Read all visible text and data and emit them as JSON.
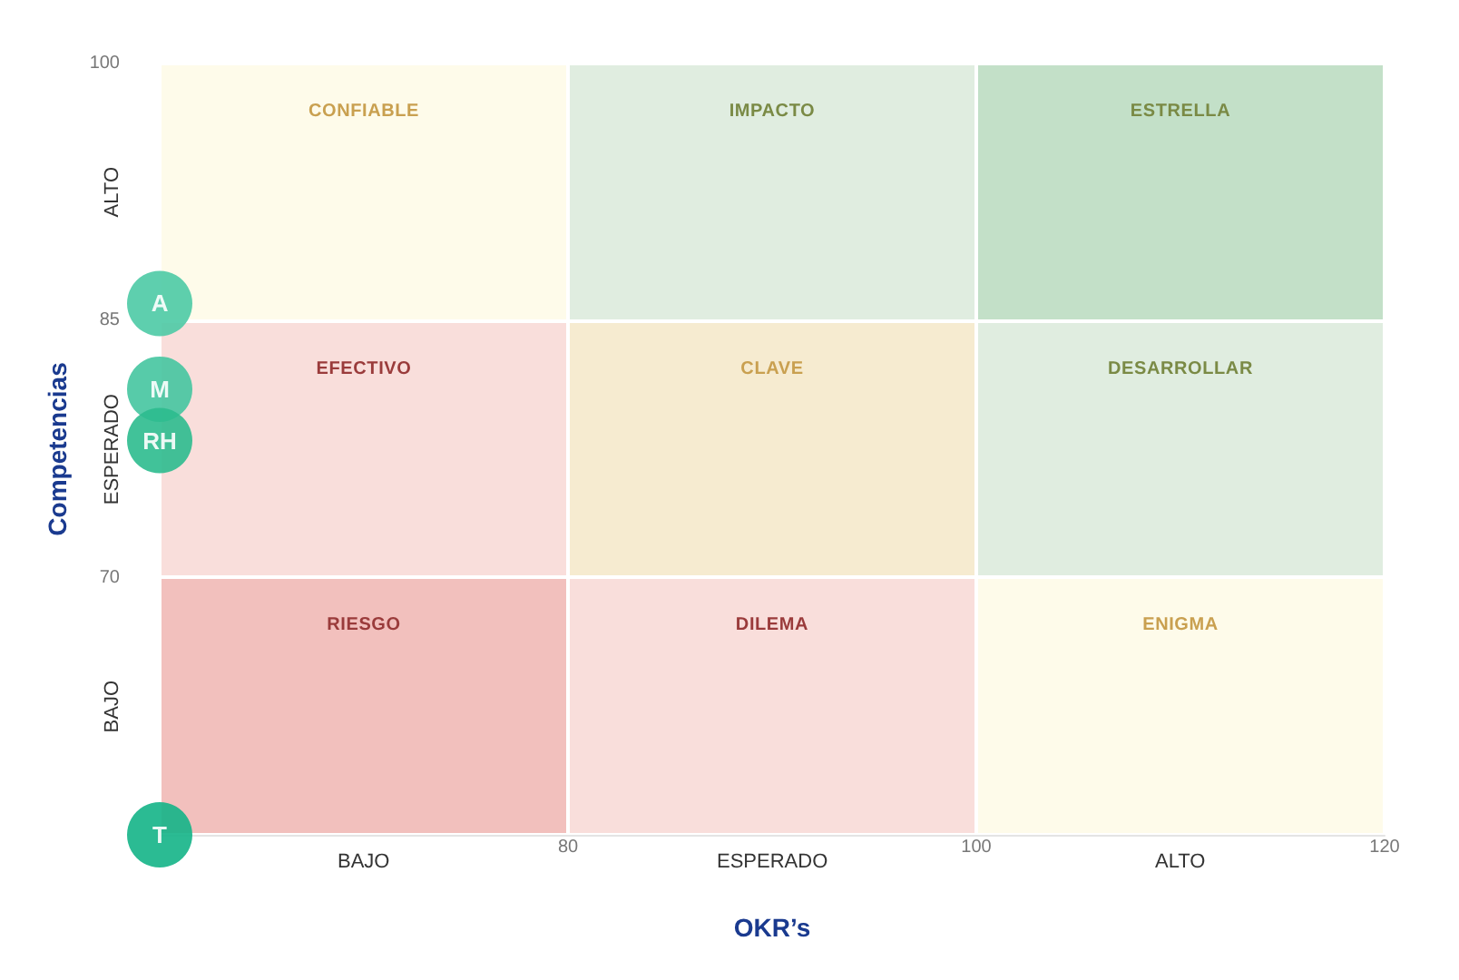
{
  "chart_data": {
    "type": "scatter",
    "xlabel": "OKR’s",
    "ylabel": "Competencias",
    "xlim": [
      60,
      120
    ],
    "ylim": [
      55,
      100
    ],
    "xticks": [
      80,
      100,
      120
    ],
    "yticks": [
      70,
      85,
      100
    ],
    "annotations": [
      "CONFIABLE",
      "IMPACTO",
      "ESTRELLA",
      "EFECTIVO",
      "CLAVE",
      "DESARROLLAR",
      "RIESGO",
      "DILEMA",
      "ENIGMA",
      "BAJO",
      "ESPERADO",
      "ALTO",
      "ALTO",
      "ESPERADO",
      "BAJO"
    ],
    "x": [
      60
    ],
    "series": [
      {
        "name": "A",
        "color": "#4ccaa5",
        "values": [
          86
        ]
      },
      {
        "name": "M",
        "color": "#45c5a0",
        "values": [
          81
        ]
      },
      {
        "name": "RH",
        "color": "#2cbb8e",
        "values": [
          78
        ]
      },
      {
        "name": "T",
        "color": "#14b487",
        "values": [
          55
        ]
      }
    ],
    "marker": "circle",
    "legend": false
  }
}
